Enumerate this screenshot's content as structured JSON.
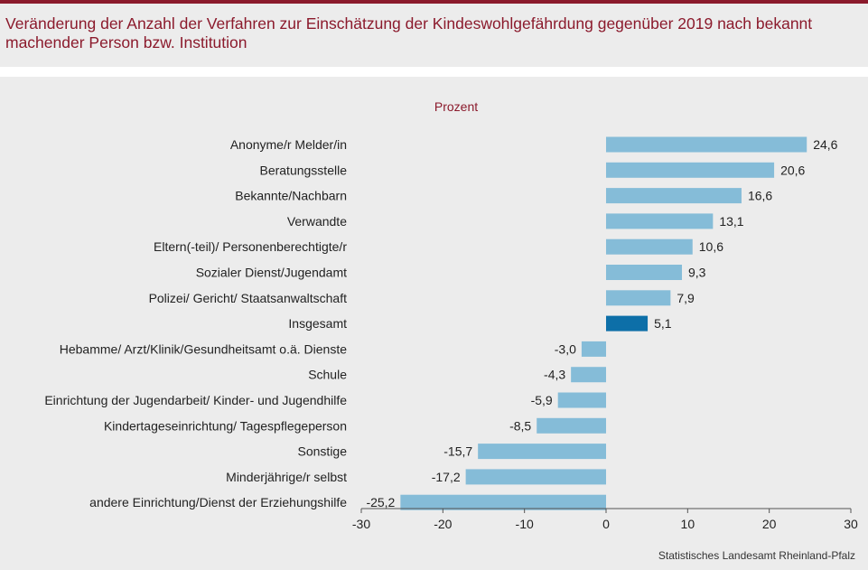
{
  "header": {
    "title": "Veränderung der Anzahl der Verfahren zur Einschätzung der Kindeswohlgefährdung gegenüber 2019 nach bekannt machender Person bzw. Institution"
  },
  "colors": {
    "title": "#8b1a2c",
    "bar": "#85bcd8",
    "bar_highlight": "#0d6fa8",
    "background": "#ececec"
  },
  "source": "Statistisches Landesamt Rheinland-Pfalz",
  "chart_data": {
    "type": "bar",
    "orientation": "horizontal",
    "unit_label": "Prozent",
    "categories": [
      "Anonyme/r Melder/in",
      "Beratungsstelle",
      "Bekannte/Nachbarn",
      "Verwandte",
      "Eltern(-teil)/ Personenberechtigte/r",
      "Sozialer Dienst/Jugendamt",
      "Polizei/ Gericht/ Staatsanwaltschaft",
      "Insgesamt",
      "Hebamme/ Arzt/Klinik/Gesundheitsamt o.ä. Dienste",
      "Schule",
      "Einrichtung der Jugendarbeit/ Kinder- und Jugendhilfe",
      "Kindertageseinrichtung/ Tagespflegeperson",
      "Sonstige",
      "Minderjährige/r selbst",
      "andere Einrichtung/Dienst der Erziehungshilfe"
    ],
    "values": [
      24.6,
      20.6,
      16.6,
      13.1,
      10.6,
      9.3,
      7.9,
      5.1,
      -3.0,
      -4.3,
      -5.9,
      -8.5,
      -15.7,
      -17.2,
      -25.2
    ],
    "value_labels": [
      "24,6",
      "20,6",
      "16,6",
      "13,1",
      "10,6",
      "9,3",
      "7,9",
      "5,1",
      "-3,0",
      "-4,3",
      "-5,9",
      "-8,5",
      "-15,7",
      "-17,2",
      "-25,2"
    ],
    "highlight": "Insgesamt",
    "xlim": [
      -30,
      30
    ],
    "xticks": [
      -30,
      -20,
      -10,
      0,
      10,
      20,
      30
    ],
    "xtick_labels": [
      "-30",
      "-20",
      "-10",
      "0",
      "10",
      "20",
      "30"
    ],
    "grid": false,
    "legend": "none"
  }
}
